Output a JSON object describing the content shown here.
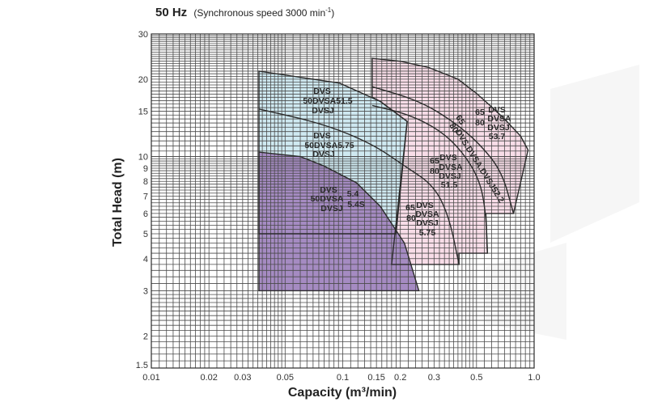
{
  "chart_data": {
    "type": "area",
    "title": "50 Hz",
    "subtitle": "(Synchronous speed  3000 min",
    "subtitle_sup": "-1",
    "subtitle_end": ")",
    "xlabel": "Capacity (m³/min)",
    "ylabel": "Total Head (m)",
    "x_scale": "log",
    "y_scale": "log",
    "xlim": [
      0.01,
      1.0
    ],
    "ylim": [
      1.5,
      30
    ],
    "grid": true,
    "x_ticks": [
      "0.01",
      "0.02",
      "0.03",
      "0.05",
      "0.1",
      "0.15",
      "0.2",
      "0.3",
      "0.5",
      "1.0"
    ],
    "y_ticks": [
      "1.5",
      "2",
      "3",
      "4",
      "5",
      "6",
      "7",
      "8",
      "9",
      "10",
      "15",
      "20",
      "30"
    ],
    "colors": {
      "purple": "#a58bc2",
      "blue": "#cfe9f1",
      "pink": "#f8dde8",
      "line": "#2b2b2b",
      "grid": "#4a4a4a"
    },
    "regions": [
      {
        "name": "65/80 DVS series",
        "color": "pink",
        "boundary": [
          [
            0.1426,
            24.1
          ],
          [
            0.2,
            23.5
          ],
          [
            0.282,
            22.2
          ],
          [
            0.4,
            20.0
          ],
          [
            0.5,
            17.6
          ],
          [
            0.6,
            15.6
          ],
          [
            0.7,
            14.0
          ],
          [
            0.85,
            12.0
          ],
          [
            0.93,
            10.6
          ],
          [
            0.78,
            6.0
          ],
          [
            0.56,
            6.0
          ],
          [
            0.57,
            4.2
          ],
          [
            0.405,
            4.2
          ],
          [
            0.405,
            3.8
          ],
          [
            0.18,
            3.8
          ],
          [
            0.217,
            13.7
          ],
          [
            0.157,
            16.4
          ],
          [
            0.1426,
            17.0
          ]
        ]
      },
      {
        "name": "50DVS 51.5 / 5.75",
        "color": "blue",
        "boundary": [
          [
            0.0365,
            21.5
          ],
          [
            0.0965,
            19.3
          ],
          [
            0.157,
            16.4
          ],
          [
            0.217,
            13.7
          ],
          [
            0.19,
            5.0
          ],
          [
            0.0365,
            5.0
          ]
        ]
      },
      {
        "name": "50DVS 5.4 / 5.4S",
        "color": "purple",
        "boundary": [
          [
            0.0365,
            10.4
          ],
          [
            0.06,
            10.0
          ],
          [
            0.0795,
            9.2
          ],
          [
            0.118,
            7.9
          ],
          [
            0.157,
            6.4
          ],
          [
            0.21,
            4.6
          ],
          [
            0.25,
            3.0
          ],
          [
            0.0365,
            3.0
          ]
        ]
      }
    ],
    "curves": [
      {
        "name": "50DVS 5.75 / 65-80DVS 5.75 top",
        "points": [
          [
            0.0365,
            15.3
          ],
          [
            0.0795,
            13.4
          ],
          [
            0.1426,
            11.2
          ],
          [
            0.21,
            9.2
          ],
          [
            0.3,
            7.7
          ],
          [
            0.36,
            5.8
          ],
          [
            0.405,
            3.8
          ]
        ]
      },
      {
        "name": "65-80DVS 51.5 top",
        "points": [
          [
            0.1426,
            15.8
          ],
          [
            0.22,
            14.6
          ],
          [
            0.32,
            12.7
          ],
          [
            0.42,
            10.5
          ],
          [
            0.52,
            8.1
          ],
          [
            0.56,
            6.0
          ],
          [
            0.57,
            4.2
          ]
        ]
      },
      {
        "name": "65-80DVS 52.2 top",
        "points": [
          [
            0.1426,
            18.7
          ],
          [
            0.25,
            16.5
          ],
          [
            0.378,
            13.7
          ],
          [
            0.52,
            11.2
          ],
          [
            0.68,
            8.7
          ],
          [
            0.78,
            6.0
          ]
        ]
      }
    ],
    "labels": {
      "blue_upper": [
        "DVS",
        "50DVSA51.5",
        "DVSJ"
      ],
      "blue_lower": [
        "DVS",
        "50DVSA5.75",
        "DVSJ"
      ],
      "purple": [
        "DVS",
        "50DVSA",
        "DVSJ",
        "5.4",
        "5.4S"
      ],
      "pink_53_7": [
        "65",
        "80",
        "DVS",
        "DVSA",
        "DVSJ",
        "53.7"
      ],
      "pink_52_2": [
        "65",
        "80",
        "DVS.DVSA.DVSJ52.2"
      ],
      "pink_51_5": [
        "65",
        "80",
        "DVS",
        "DVSA",
        "DVSJ",
        "51.5"
      ],
      "pink_5_75": [
        "65",
        "80",
        "DVS",
        "DVSA",
        "DVSJ",
        "5.75"
      ]
    }
  }
}
